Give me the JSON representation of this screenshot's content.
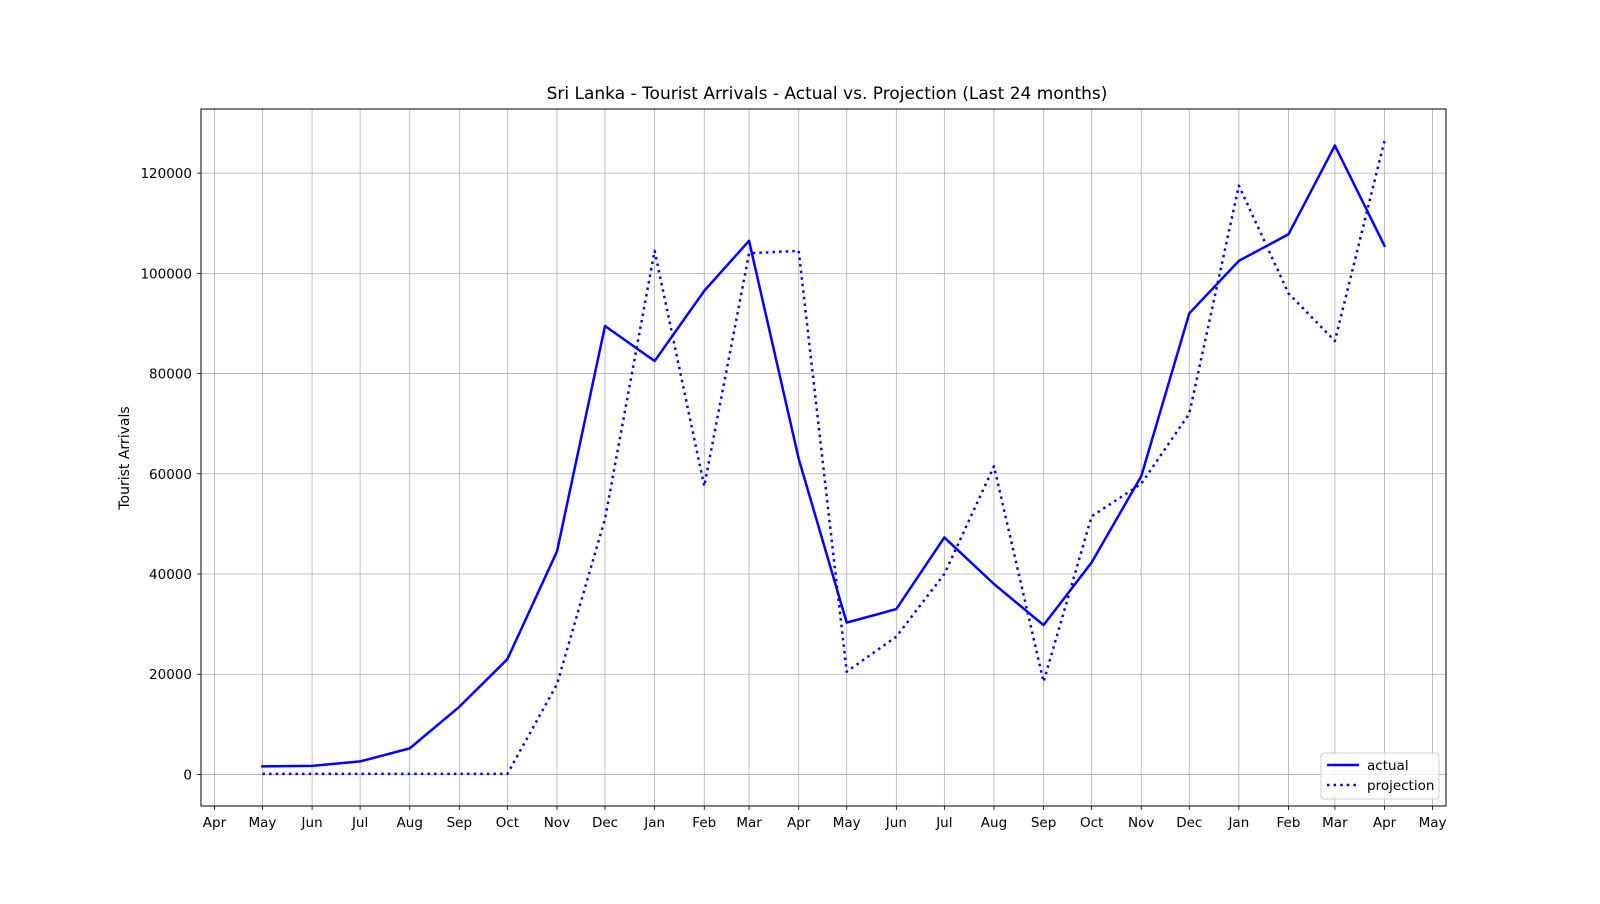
{
  "chart_data": {
    "type": "line",
    "title": "Sri Lanka - Tourist Arrivals - Actual vs. Projection (Last 24 months)",
    "xlabel": "",
    "ylabel": "Tourist Arrivals",
    "x_tick_labels": [
      "Apr",
      "May",
      "Jun",
      "Jul",
      "Aug",
      "Sep",
      "Oct",
      "Nov",
      "Dec",
      "Jan",
      "Feb",
      "Mar",
      "Apr",
      "May",
      "Jun",
      "Jul",
      "Aug",
      "Sep",
      "Oct",
      "Nov",
      "Dec",
      "Jan",
      "Feb",
      "Mar",
      "Apr",
      "May"
    ],
    "x_tick_dates": [
      "2022-04-01",
      "2022-05-01",
      "2022-06-01",
      "2022-07-01",
      "2022-08-01",
      "2022-09-01",
      "2022-10-01",
      "2022-11-01",
      "2022-12-01",
      "2023-01-01",
      "2023-02-01",
      "2023-03-01",
      "2023-04-01",
      "2023-05-01",
      "2023-06-01",
      "2023-07-01",
      "2023-08-01",
      "2023-09-01",
      "2023-10-01",
      "2023-11-01",
      "2023-12-01",
      "2024-01-01",
      "2024-02-01",
      "2024-03-01",
      "2024-04-01",
      "2024-05-01"
    ],
    "x": [
      "2022-05-01",
      "2022-06-01",
      "2022-07-01",
      "2022-08-01",
      "2022-09-01",
      "2022-10-01",
      "2022-11-01",
      "2022-12-01",
      "2023-01-01",
      "2023-02-01",
      "2023-03-01",
      "2023-04-01",
      "2023-05-01",
      "2023-06-01",
      "2023-07-01",
      "2023-08-01",
      "2023-09-01",
      "2023-10-01",
      "2023-11-01",
      "2023-12-01",
      "2024-01-01",
      "2024-02-01",
      "2024-03-01",
      "2024-04-01"
    ],
    "x_range": [
      "2022-04-01",
      "2024-05-01"
    ],
    "series": [
      {
        "name": "actual",
        "style": "solid",
        "color": "#0000ff",
        "values": [
          1600,
          1700,
          2600,
          5200,
          13500,
          23000,
          44500,
          89500,
          82500,
          96500,
          106500,
          63000,
          30300,
          33000,
          47300,
          38000,
          29800,
          42300,
          59500,
          92000,
          102500,
          107800,
          125500,
          105500
        ]
      },
      {
        "name": "projection",
        "style": "dotted",
        "color": "#0000ff",
        "values": [
          100,
          100,
          100,
          100,
          100,
          100,
          18000,
          51000,
          104500,
          57500,
          104000,
          104500,
          20500,
          27500,
          40000,
          61500,
          18500,
          51500,
          58000,
          72000,
          117500,
          96000,
          86500,
          126500
        ]
      }
    ],
    "ylim": [
      -6300,
      132800
    ],
    "y_ticks": [
      0,
      20000,
      40000,
      60000,
      80000,
      100000,
      120000
    ],
    "y_tick_labels": [
      "0",
      "20000",
      "40000",
      "60000",
      "80000",
      "100000",
      "120000"
    ],
    "grid": true,
    "legend_position": "lower-right"
  }
}
